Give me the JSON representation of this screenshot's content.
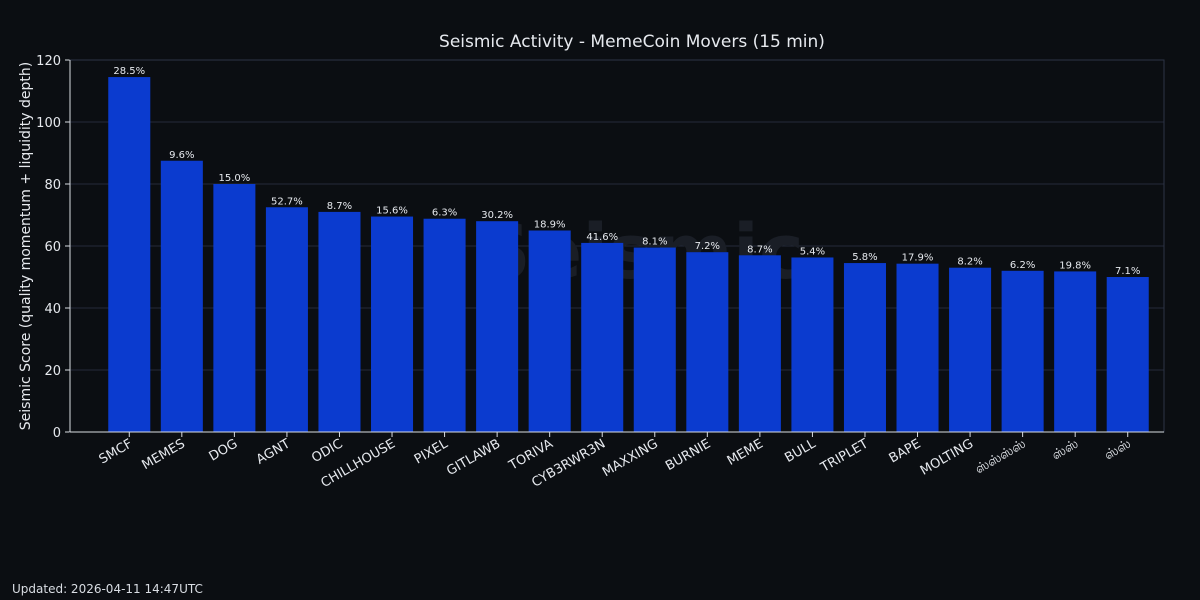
{
  "chart_data": {
    "type": "bar",
    "title": "Seismic Activity - MemeCoin Movers (15 min)",
    "xlabel": "",
    "ylabel": "Seismic Score (quality momentum + liquidity depth)",
    "ylim": [
      0,
      120
    ],
    "yticks": [
      0,
      20,
      40,
      60,
      80,
      100,
      120
    ],
    "grid": true,
    "categories": [
      "SMCF",
      "MEMES",
      "DOG",
      "AGNT",
      "ODIC",
      "CHILLHOUSE",
      "PIXEL",
      "GITLAWB",
      "TORIVA",
      "CYB3RWR3N",
      "MAXXING",
      "BURNIE",
      "MEME",
      "BULL",
      "TRIPLET",
      "BAPE",
      "MOLTING",
      "ஸ்ஸ்ஸ்ஸ்",
      "ஸ்ஸ்",
      "ஸ்ஸ்"
    ],
    "values": [
      114.5,
      87.5,
      80,
      72.5,
      71,
      69.5,
      68.8,
      68,
      65,
      61,
      59.5,
      58,
      57,
      56.3,
      54.5,
      54.3,
      53,
      52,
      51.8,
      50
    ],
    "labels": [
      "28.5%",
      "9.6%",
      "15.0%",
      "52.7%",
      "8.7%",
      "15.6%",
      "6.3%",
      "30.2%",
      "18.9%",
      "41.6%",
      "8.1%",
      "7.2%",
      "8.7%",
      "5.4%",
      "5.8%",
      "17.9%",
      "8.2%",
      "6.2%",
      "19.8%",
      "7.1%"
    ],
    "bar_color": "#0b3bcf",
    "watermark": "Seismic"
  },
  "footer": {
    "updated": "Updated: 2026-04-11 14:47UTC"
  }
}
